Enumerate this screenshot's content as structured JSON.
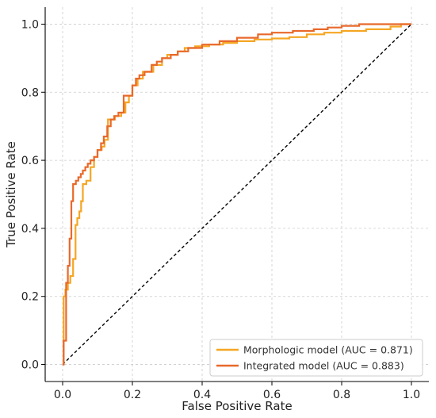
{
  "chart_data": {
    "type": "line",
    "xlabel": "False Positive Rate",
    "ylabel": "True Positive Rate",
    "xlim": [
      -0.05,
      1.05
    ],
    "ylim": [
      -0.05,
      1.05
    ],
    "xticks": [
      0.0,
      0.2,
      0.4,
      0.6,
      0.8,
      1.0
    ],
    "yticks": [
      0.0,
      0.2,
      0.4,
      0.6,
      0.8,
      1.0
    ],
    "xtick_labels": [
      "0.0",
      "0.2",
      "0.4",
      "0.6",
      "0.8",
      "1.0"
    ],
    "ytick_labels": [
      "0.0",
      "0.2",
      "0.4",
      "0.6",
      "0.8",
      "1.0"
    ],
    "grid": true,
    "legend_position": "bottom-right",
    "series": [
      {
        "name": "Morphologic model (AUC = 0.871)",
        "color": "#F5A623",
        "x": [
          0.0,
          0.003,
          0.003,
          0.008,
          0.008,
          0.015,
          0.015,
          0.022,
          0.022,
          0.03,
          0.03,
          0.037,
          0.037,
          0.042,
          0.042,
          0.048,
          0.048,
          0.053,
          0.053,
          0.058,
          0.058,
          0.068,
          0.068,
          0.08,
          0.08,
          0.09,
          0.09,
          0.1,
          0.1,
          0.112,
          0.112,
          0.12,
          0.12,
          0.13,
          0.13,
          0.15,
          0.15,
          0.168,
          0.168,
          0.18,
          0.18,
          0.19,
          0.19,
          0.2,
          0.2,
          0.215,
          0.215,
          0.23,
          0.23,
          0.26,
          0.26,
          0.285,
          0.285,
          0.3,
          0.3,
          0.33,
          0.33,
          0.35,
          0.35,
          0.38,
          0.38,
          0.42,
          0.42,
          0.46,
          0.46,
          0.5,
          0.5,
          0.55,
          0.55,
          0.6,
          0.6,
          0.65,
          0.65,
          0.7,
          0.7,
          0.75,
          0.75,
          0.8,
          0.8,
          0.87,
          0.87,
          0.94,
          0.94,
          0.97,
          0.97,
          1.0
        ],
        "y": [
          0.0,
          0.0,
          0.2,
          0.2,
          0.22,
          0.22,
          0.24,
          0.24,
          0.26,
          0.26,
          0.31,
          0.31,
          0.41,
          0.41,
          0.43,
          0.43,
          0.45,
          0.45,
          0.48,
          0.48,
          0.53,
          0.53,
          0.54,
          0.54,
          0.58,
          0.58,
          0.61,
          0.61,
          0.63,
          0.63,
          0.64,
          0.64,
          0.66,
          0.66,
          0.72,
          0.72,
          0.73,
          0.73,
          0.74,
          0.74,
          0.77,
          0.77,
          0.79,
          0.79,
          0.82,
          0.82,
          0.84,
          0.84,
          0.86,
          0.86,
          0.88,
          0.88,
          0.9,
          0.9,
          0.91,
          0.91,
          0.92,
          0.92,
          0.93,
          0.93,
          0.935,
          0.935,
          0.94,
          0.94,
          0.945,
          0.945,
          0.95,
          0.95,
          0.955,
          0.955,
          0.958,
          0.958,
          0.962,
          0.962,
          0.97,
          0.97,
          0.975,
          0.975,
          0.98,
          0.98,
          0.985,
          0.985,
          0.993,
          0.993,
          1.0,
          1.0
        ]
      },
      {
        "name": "Integrated model (AUC = 0.883)",
        "color": "#E8692B",
        "x": [
          0.0,
          0.003,
          0.003,
          0.01,
          0.01,
          0.015,
          0.015,
          0.02,
          0.02,
          0.025,
          0.025,
          0.03,
          0.03,
          0.038,
          0.038,
          0.045,
          0.045,
          0.052,
          0.052,
          0.058,
          0.058,
          0.065,
          0.065,
          0.072,
          0.072,
          0.08,
          0.08,
          0.09,
          0.09,
          0.1,
          0.1,
          0.11,
          0.11,
          0.118,
          0.118,
          0.128,
          0.128,
          0.138,
          0.138,
          0.148,
          0.148,
          0.16,
          0.16,
          0.175,
          0.175,
          0.2,
          0.2,
          0.21,
          0.21,
          0.22,
          0.22,
          0.235,
          0.235,
          0.255,
          0.255,
          0.27,
          0.27,
          0.285,
          0.285,
          0.31,
          0.31,
          0.33,
          0.33,
          0.36,
          0.36,
          0.4,
          0.4,
          0.45,
          0.45,
          0.5,
          0.5,
          0.56,
          0.56,
          0.6,
          0.6,
          0.66,
          0.66,
          0.72,
          0.72,
          0.76,
          0.76,
          0.8,
          0.8,
          0.85,
          0.85,
          1.0
        ],
        "y": [
          0.0,
          0.0,
          0.07,
          0.07,
          0.24,
          0.24,
          0.29,
          0.29,
          0.37,
          0.37,
          0.48,
          0.48,
          0.53,
          0.53,
          0.54,
          0.54,
          0.55,
          0.55,
          0.56,
          0.56,
          0.57,
          0.57,
          0.58,
          0.58,
          0.59,
          0.59,
          0.6,
          0.6,
          0.61,
          0.61,
          0.63,
          0.63,
          0.65,
          0.65,
          0.67,
          0.67,
          0.7,
          0.7,
          0.72,
          0.72,
          0.73,
          0.73,
          0.74,
          0.74,
          0.79,
          0.79,
          0.82,
          0.82,
          0.84,
          0.84,
          0.85,
          0.85,
          0.86,
          0.86,
          0.88,
          0.88,
          0.89,
          0.89,
          0.9,
          0.9,
          0.91,
          0.91,
          0.92,
          0.92,
          0.93,
          0.93,
          0.94,
          0.94,
          0.95,
          0.95,
          0.96,
          0.96,
          0.97,
          0.97,
          0.975,
          0.975,
          0.98,
          0.98,
          0.985,
          0.985,
          0.99,
          0.99,
          0.995,
          0.995,
          1.0,
          1.0
        ]
      }
    ],
    "reference_line": {
      "x": [
        0,
        1
      ],
      "y": [
        0,
        1
      ],
      "color": "#000000",
      "style": "dashed"
    }
  }
}
